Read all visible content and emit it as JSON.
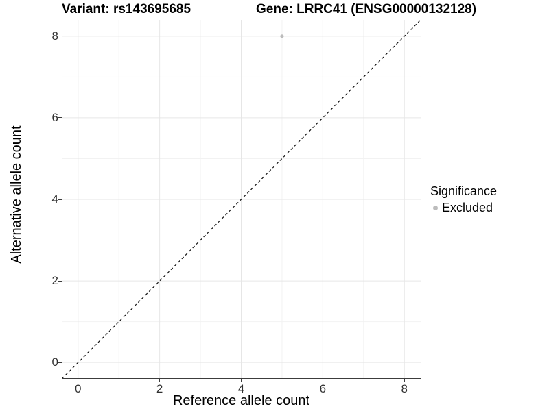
{
  "titles": {
    "variant": "Variant: rs143695685",
    "gene": "Gene: LRRC41 (ENSG00000132128)"
  },
  "legend": {
    "title": "Significance",
    "items": [
      {
        "label": "Excluded",
        "color": "#bcbcbc"
      }
    ]
  },
  "chart_data": {
    "type": "scatter",
    "title": "Variant: rs143695685 / Gene: LRRC41 (ENSG00000132128)",
    "xlabel": "Reference allele count",
    "ylabel": "Alternative allele count",
    "xlim": [
      -0.4,
      8.4
    ],
    "ylim": [
      -0.4,
      8.4
    ],
    "x_ticks": [
      0,
      2,
      4,
      6,
      8
    ],
    "y_ticks": [
      0,
      2,
      4,
      6,
      8
    ],
    "x_minor_ticks": [
      1,
      3,
      5,
      7
    ],
    "y_minor_ticks": [
      1,
      3,
      5,
      7
    ],
    "grid": true,
    "legend_position": "right",
    "series": [
      {
        "name": "Excluded",
        "color": "#bcbcbc",
        "points": [
          {
            "x": 5,
            "y": 8
          }
        ]
      }
    ],
    "reference_line": {
      "type": "identity",
      "from": [
        -0.4,
        -0.4
      ],
      "to": [
        8.4,
        8.4
      ],
      "style": "dashed",
      "color": "#141414"
    }
  },
  "colors": {
    "grid_major": "#e6e6e6",
    "grid_minor": "#f2f2f2",
    "axis_line": "#3c3c3c",
    "point": "#bcbcbc"
  }
}
